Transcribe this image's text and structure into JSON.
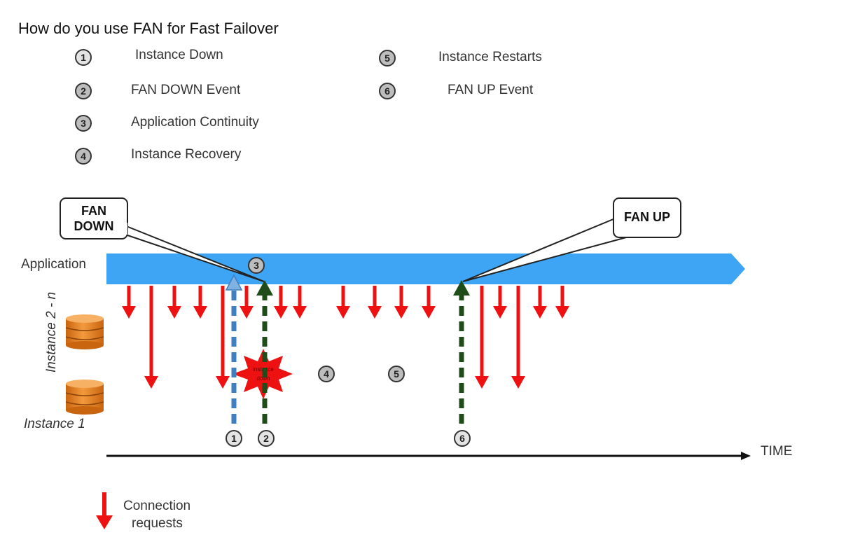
{
  "title": "How do you use FAN for Fast Failover",
  "legend": [
    {
      "num": "1",
      "label": "Instance Down"
    },
    {
      "num": "2",
      "label": "FAN DOWN Event"
    },
    {
      "num": "3",
      "label": "Application Continuity"
    },
    {
      "num": "4",
      "label": "Instance Recovery"
    },
    {
      "num": "5",
      "label": "Instance Restarts"
    },
    {
      "num": "6",
      "label": "FAN UP Event"
    }
  ],
  "callouts": {
    "fan_down": "FAN\nDOWN",
    "fan_up": "FAN UP"
  },
  "labels": {
    "application": "Application",
    "instance_2n": "Instance 2 - n",
    "instance_1": "Instance 1",
    "time": "TIME",
    "connection_requests": "Connection\nrequests",
    "instance_down_burst": "instance down"
  },
  "markers": {
    "app_marker": "3",
    "recovery_marker": "4",
    "restart_marker": "5",
    "event1": "1",
    "event2": "2",
    "event6": "6"
  },
  "colors": {
    "application_bar": "#3da5f4",
    "connection_arrow": "#ee1111",
    "instance_down_arrow": "#3f7fc0",
    "fan_event_arrow": "#1f4d1a",
    "database": "#e8801e",
    "burst": "#ee1111"
  }
}
